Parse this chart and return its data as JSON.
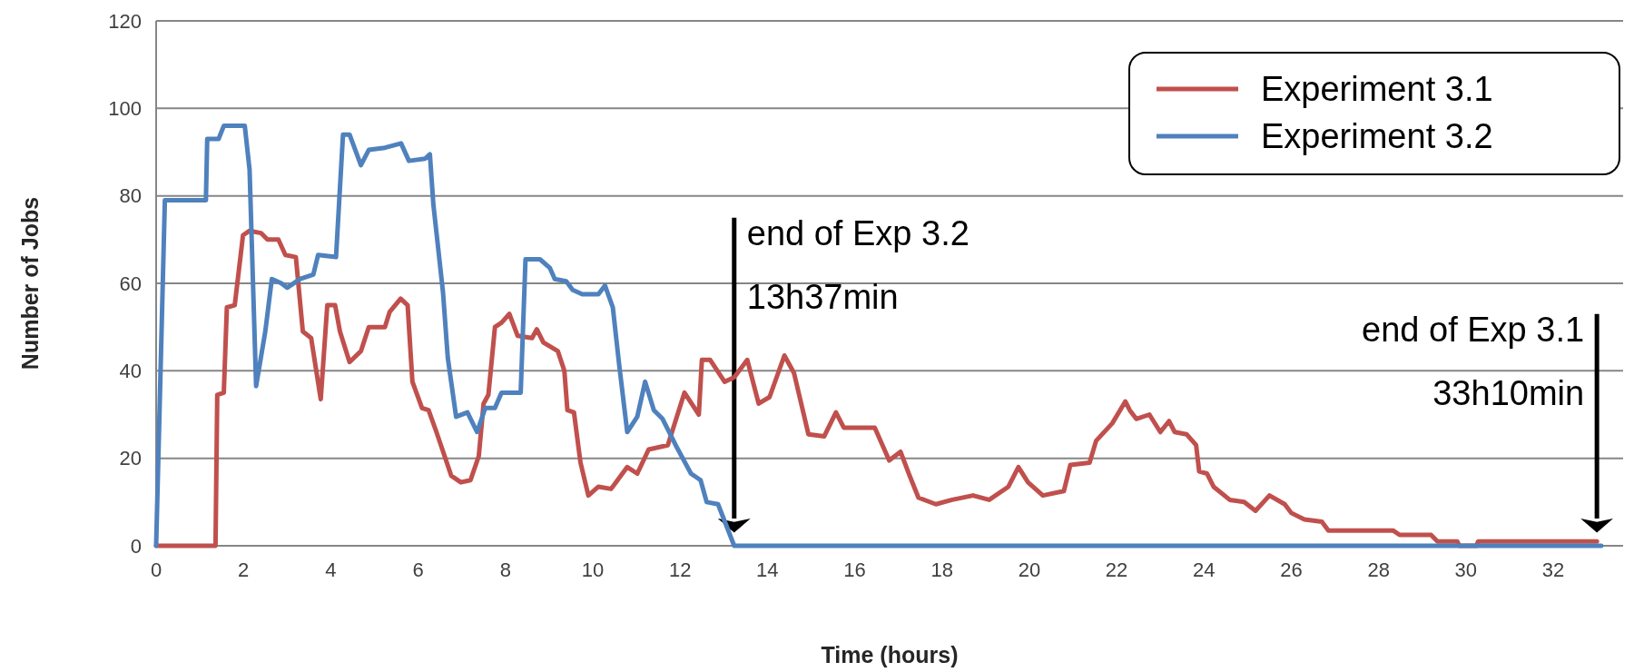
{
  "chart_data": {
    "type": "line",
    "xlabel": "Time (hours)",
    "ylabel": "Number of Jobs",
    "xlim": [
      0,
      33.6
    ],
    "xticks": [
      0,
      2,
      4,
      6,
      8,
      10,
      12,
      14,
      16,
      18,
      20,
      22,
      24,
      26,
      28,
      30,
      32
    ],
    "ylim": [
      0,
      120
    ],
    "yticks": [
      0,
      20,
      40,
      60,
      80,
      100,
      120
    ],
    "grid": "y",
    "legend": "top right",
    "marker": "none",
    "line_style": "solid",
    "series": [
      {
        "name": "Experiment 3.1",
        "color": "#c0504d",
        "x": [
          0,
          1.36,
          1.4,
          1.55,
          1.62,
          1.8,
          1.99,
          2.14,
          2.4,
          2.55,
          2.8,
          2.96,
          3.2,
          3.36,
          3.55,
          3.77,
          3.92,
          4.1,
          4.21,
          4.43,
          4.69,
          4.87,
          5.24,
          5.35,
          5.6,
          5.76,
          5.87,
          6.09,
          6.24,
          6.42,
          6.76,
          6.98,
          7.2,
          7.39,
          7.5,
          7.61,
          7.76,
          7.91,
          8.09,
          8.28,
          8.61,
          8.72,
          8.87,
          9.2,
          9.35,
          9.42,
          9.57,
          9.72,
          9.9,
          10.13,
          10.42,
          10.53,
          10.79,
          11.02,
          11.28,
          11.72,
          12.1,
          12.43,
          12.5,
          12.69,
          13.02,
          13.24,
          13.54,
          13.8,
          14.05,
          14.39,
          14.61,
          14.94,
          15.3,
          15.57,
          15.75,
          16.46,
          16.79,
          17.05,
          17.24,
          17.46,
          17.86,
          18.23,
          18.71,
          19.08,
          19.52,
          19.75,
          19.97,
          20.31,
          20.79,
          20.94,
          21.38,
          21.53,
          21.9,
          22.2,
          22.3,
          22.45,
          22.75,
          23.0,
          23.2,
          23.33,
          23.6,
          23.82,
          23.89,
          24.07,
          24.22,
          24.59,
          24.92,
          25.18,
          25.5,
          25.85,
          26.0,
          26.3,
          26.7,
          26.85,
          28.33,
          28.48,
          29.2,
          29.35,
          29.8,
          29.85,
          30.24,
          30.28,
          33.0
        ],
        "values": [
          0,
          0,
          34.5,
          35,
          54.5,
          55,
          71,
          72,
          71.5,
          70,
          70,
          66.5,
          66,
          49,
          47.5,
          33.5,
          55,
          55,
          49,
          42,
          44.5,
          50,
          50,
          53.5,
          56.5,
          55,
          37.5,
          31.5,
          31,
          26,
          16,
          14.5,
          15,
          20.5,
          32.5,
          34.5,
          50,
          51,
          53,
          48,
          47.5,
          49.5,
          46.5,
          44.5,
          40,
          31,
          30.5,
          19,
          11.5,
          13.5,
          13,
          14.5,
          18,
          16.5,
          22,
          23,
          35,
          30,
          42.5,
          42.5,
          37.5,
          38.5,
          42.5,
          32.5,
          34,
          43.5,
          39.5,
          25.5,
          25,
          30.5,
          27,
          27,
          19.5,
          21.5,
          16.5,
          11,
          9.5,
          10.5,
          11.5,
          10.5,
          13.5,
          18,
          14.5,
          11.5,
          12.5,
          18.5,
          19,
          24,
          28,
          33,
          31,
          29,
          30,
          26,
          28.5,
          26,
          25.5,
          23,
          17,
          16.5,
          13.5,
          10.5,
          10,
          8,
          11.5,
          9.5,
          7.5,
          6,
          5.5,
          3.5,
          3.5,
          2.5,
          2.5,
          1,
          1,
          0,
          0,
          1,
          1
        ]
      },
      {
        "name": "Experiment 3.2",
        "color": "#4f81bd",
        "x": [
          0,
          0.2,
          1.14,
          1.17,
          1.43,
          1.55,
          2.03,
          2.14,
          2.29,
          2.5,
          2.65,
          2.87,
          3.0,
          3.3,
          3.6,
          3.71,
          4.12,
          4.28,
          4.43,
          4.69,
          4.87,
          5.24,
          5.61,
          5.79,
          6.16,
          6.27,
          6.35,
          6.57,
          6.68,
          6.87,
          7.13,
          7.35,
          7.54,
          7.76,
          7.91,
          8.35,
          8.46,
          8.79,
          9.02,
          9.13,
          9.39,
          9.54,
          9.76,
          10.13,
          10.28,
          10.46,
          10.61,
          10.79,
          11.02,
          11.2,
          11.4,
          11.6,
          11.9,
          12.25,
          12.47,
          12.61,
          12.87,
          13.24,
          33.1
        ],
        "values": [
          0,
          79,
          79,
          93,
          93,
          96,
          96,
          86,
          36.5,
          49,
          61,
          60,
          59,
          61,
          62,
          66.5,
          66,
          94,
          94,
          87,
          90.5,
          91,
          92,
          88,
          88.5,
          89.5,
          78,
          58,
          43,
          29.5,
          30.5,
          26,
          31.5,
          31.5,
          35,
          35,
          65.5,
          65.5,
          63.5,
          61,
          60.5,
          58.5,
          57.5,
          57.5,
          59.5,
          54.5,
          41,
          26,
          29.5,
          37.5,
          31,
          29,
          23,
          16.5,
          15,
          10,
          9.5,
          0,
          0
        ]
      }
    ],
    "ref_lines": [
      {
        "axis": "x",
        "value": 13.24,
        "label": "end of Exp 3.2\n13h37min"
      },
      {
        "axis": "x",
        "value": 33.0,
        "label": "end of Exp 3.1\n33h10min"
      }
    ]
  }
}
